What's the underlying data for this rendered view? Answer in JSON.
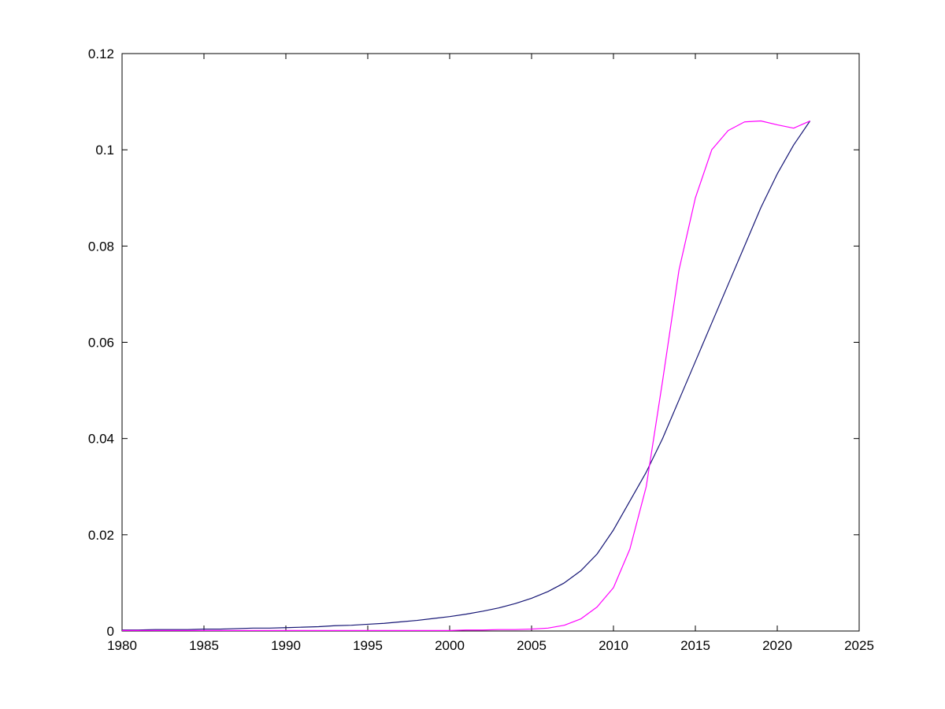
{
  "page": {
    "background": "#ffffff"
  },
  "chart_data": {
    "type": "line",
    "title": "",
    "xlabel": "",
    "ylabel": "",
    "grid": false,
    "box": true,
    "legend": null,
    "xlim": [
      1980,
      2025
    ],
    "ylim": [
      0,
      0.12
    ],
    "x_ticks": [
      1980,
      1985,
      1990,
      1995,
      2000,
      2005,
      2010,
      2015,
      2020,
      2025
    ],
    "x_tick_labels": [
      "1980",
      "1985",
      "1990",
      "1995",
      "2000",
      "2005",
      "2010",
      "2015",
      "2020",
      "2025"
    ],
    "y_ticks": [
      0,
      0.02,
      0.04,
      0.06,
      0.08,
      0.1,
      0.12
    ],
    "y_tick_labels": [
      "0",
      "0.02",
      "0.04",
      "0.06",
      "0.08",
      "0.1",
      "0.12"
    ],
    "x": [
      1980,
      1981,
      1982,
      1983,
      1984,
      1985,
      1986,
      1987,
      1988,
      1989,
      1990,
      1991,
      1992,
      1993,
      1994,
      1995,
      1996,
      1997,
      1998,
      1999,
      2000,
      2001,
      2002,
      2003,
      2004,
      2005,
      2006,
      2007,
      2008,
      2009,
      2010,
      2011,
      2012,
      2013,
      2014,
      2015,
      2016,
      2017,
      2018,
      2019,
      2020,
      2021,
      2022
    ],
    "series": [
      {
        "name": "series-smooth-dark-blue",
        "color": "#151575",
        "values": [
          0.0002,
          0.0002,
          0.0003,
          0.0003,
          0.0003,
          0.0004,
          0.0004,
          0.0005,
          0.0006,
          0.0006,
          0.0007,
          0.0008,
          0.0009,
          0.0011,
          0.0012,
          0.0014,
          0.0016,
          0.0019,
          0.0022,
          0.0026,
          0.003,
          0.0035,
          0.0041,
          0.0048,
          0.0057,
          0.0068,
          0.0082,
          0.01,
          0.0125,
          0.016,
          0.021,
          0.027,
          0.033,
          0.04,
          0.048,
          0.056,
          0.064,
          0.072,
          0.08,
          0.088,
          0.095,
          0.101,
          0.106
        ]
      },
      {
        "name": "series-steep-magenta",
        "color": "#ff00ff",
        "values": [
          0.0001,
          0.0001,
          0.0001,
          0.0001,
          0.0001,
          0.0001,
          0.0001,
          0.0001,
          0.0001,
          0.0001,
          0.0001,
          0.0001,
          0.0001,
          0.0001,
          0.0001,
          0.0001,
          0.0001,
          0.0001,
          0.0001,
          0.0001,
          0.0001,
          0.0002,
          0.0002,
          0.0003,
          0.0003,
          0.0004,
          0.0006,
          0.0012,
          0.0025,
          0.005,
          0.009,
          0.017,
          0.03,
          0.052,
          0.075,
          0.09,
          0.1,
          0.104,
          0.1058,
          0.106,
          0.1052,
          0.1045,
          0.106
        ]
      }
    ]
  }
}
